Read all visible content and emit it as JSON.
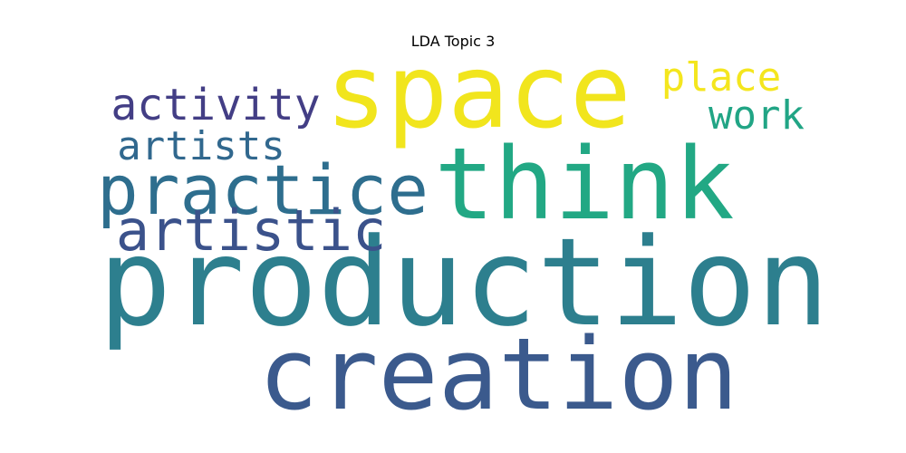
{
  "title": "LDA Topic 3",
  "wordcloud": {
    "words": [
      {
        "text": "production",
        "color": "#2d7f8e"
      },
      {
        "text": "creation",
        "color": "#3b5a8d"
      },
      {
        "text": "think",
        "color": "#22a884"
      },
      {
        "text": "space",
        "color": "#f1e51d"
      },
      {
        "text": "practice",
        "color": "#2e6e8e"
      },
      {
        "text": "artistic",
        "color": "#3b528b"
      },
      {
        "text": "activity",
        "color": "#433e85"
      },
      {
        "text": "artists",
        "color": "#31688e"
      },
      {
        "text": "place",
        "color": "#f4e61e"
      },
      {
        "text": "work",
        "color": "#21a585"
      }
    ]
  }
}
